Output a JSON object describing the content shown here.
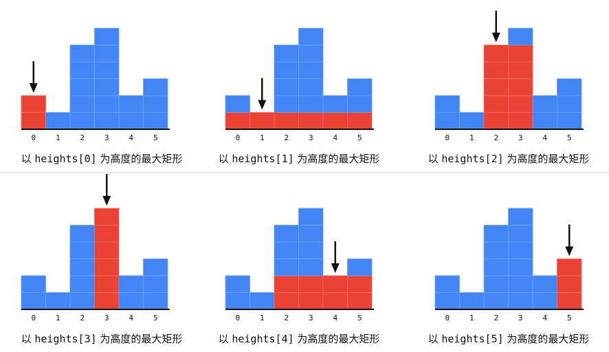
{
  "colors": {
    "bar": "#4285f4",
    "highlight": "#ea4335",
    "axis": "#111111",
    "arrow": "#111111",
    "divider": "#d9d9d9",
    "cell_line": "#6fa0f5",
    "cell_line_red": "#f06f64"
  },
  "chart_data": [
    {
      "type": "bar",
      "categories": [
        "0",
        "1",
        "2",
        "3",
        "4",
        "5"
      ],
      "values": [
        2,
        1,
        5,
        6,
        2,
        3
      ],
      "highlight_index": 0,
      "highlight_height": 2,
      "highlight_range": [
        0,
        0
      ],
      "caption_prefix": "以 ",
      "caption_code": "heights[0]",
      "caption_suffix": " 为高度的最大矩形"
    },
    {
      "type": "bar",
      "categories": [
        "0",
        "1",
        "2",
        "3",
        "4",
        "5"
      ],
      "values": [
        2,
        1,
        5,
        6,
        2,
        3
      ],
      "highlight_index": 1,
      "highlight_height": 1,
      "highlight_range": [
        0,
        5
      ],
      "caption_prefix": "以 ",
      "caption_code": "heights[1]",
      "caption_suffix": " 为高度的最大矩形"
    },
    {
      "type": "bar",
      "categories": [
        "0",
        "1",
        "2",
        "3",
        "4",
        "5"
      ],
      "values": [
        2,
        1,
        5,
        6,
        2,
        3
      ],
      "highlight_index": 2,
      "highlight_height": 5,
      "highlight_range": [
        2,
        3
      ],
      "caption_prefix": "以 ",
      "caption_code": "heights[2]",
      "caption_suffix": " 为高度的最大矩形"
    },
    {
      "type": "bar",
      "categories": [
        "0",
        "1",
        "2",
        "3",
        "4",
        "5"
      ],
      "values": [
        2,
        1,
        5,
        6,
        2,
        3
      ],
      "highlight_index": 3,
      "highlight_height": 6,
      "highlight_range": [
        3,
        3
      ],
      "caption_prefix": "以 ",
      "caption_code": "heights[3]",
      "caption_suffix": " 为高度的最大矩形"
    },
    {
      "type": "bar",
      "categories": [
        "0",
        "1",
        "2",
        "3",
        "4",
        "5"
      ],
      "values": [
        2,
        1,
        5,
        6,
        2,
        3
      ],
      "highlight_index": 4,
      "highlight_height": 2,
      "highlight_range": [
        2,
        5
      ],
      "caption_prefix": "以 ",
      "caption_code": "heights[4]",
      "caption_suffix": " 为高度的最大矩形"
    },
    {
      "type": "bar",
      "categories": [
        "0",
        "1",
        "2",
        "3",
        "4",
        "5"
      ],
      "values": [
        2,
        1,
        5,
        6,
        2,
        3
      ],
      "highlight_index": 5,
      "highlight_height": 3,
      "highlight_range": [
        5,
        5
      ],
      "caption_prefix": "以 ",
      "caption_code": "heights[5]",
      "caption_suffix": " 为高度的最大矩形"
    }
  ]
}
